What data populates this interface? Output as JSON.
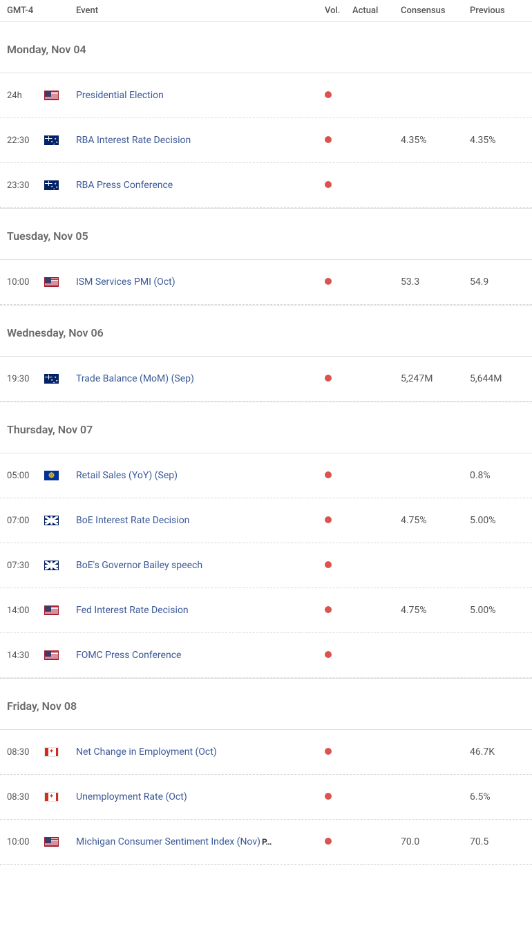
{
  "colors": {
    "vol_dot": "#d9534f",
    "event_link": "#3b5998",
    "text": "#555555",
    "day_header": "#6a6a6a",
    "border": "#e0e0e0",
    "dashed_border": "#d8d8d8"
  },
  "header": {
    "time": "GMT-4",
    "event": "Event",
    "vol": "Vol.",
    "actual": "Actual",
    "consensus": "Consensus",
    "previous": "Previous"
  },
  "days": [
    {
      "label": "Monday, Nov 04",
      "events": [
        {
          "time": "24h",
          "country": "us",
          "name": "Presidential Election",
          "vol": "high",
          "actual": "",
          "consensus": "",
          "previous": ""
        },
        {
          "time": "22:30",
          "country": "au",
          "name": "RBA Interest Rate Decision",
          "vol": "high",
          "actual": "",
          "consensus": "4.35%",
          "previous": "4.35%"
        },
        {
          "time": "23:30",
          "country": "au",
          "name": "RBA Press Conference",
          "vol": "high",
          "actual": "",
          "consensus": "",
          "previous": ""
        }
      ]
    },
    {
      "label": "Tuesday, Nov 05",
      "events": [
        {
          "time": "10:00",
          "country": "us",
          "name": "ISM Services PMI (Oct)",
          "vol": "high",
          "actual": "",
          "consensus": "53.3",
          "previous": "54.9"
        }
      ]
    },
    {
      "label": "Wednesday, Nov 06",
      "events": [
        {
          "time": "19:30",
          "country": "au",
          "name": "Trade Balance (MoM) (Sep)",
          "vol": "high",
          "actual": "",
          "consensus": "5,247M",
          "previous": "5,644M"
        }
      ]
    },
    {
      "label": "Thursday, Nov 07",
      "events": [
        {
          "time": "05:00",
          "country": "eu",
          "name": "Retail Sales (YoY) (Sep)",
          "vol": "high",
          "actual": "",
          "consensus": "",
          "previous": "0.8%"
        },
        {
          "time": "07:00",
          "country": "uk",
          "name": "BoE Interest Rate Decision",
          "vol": "high",
          "actual": "",
          "consensus": "4.75%",
          "previous": "5.00%"
        },
        {
          "time": "07:30",
          "country": "uk",
          "name": "BoE's Governor Bailey speech",
          "vol": "high",
          "actual": "",
          "consensus": "",
          "previous": ""
        },
        {
          "time": "14:00",
          "country": "us",
          "name": "Fed Interest Rate Decision",
          "vol": "high",
          "actual": "",
          "consensus": "4.75%",
          "previous": "5.00%"
        },
        {
          "time": "14:30",
          "country": "us",
          "name": "FOMC Press Conference",
          "vol": "high",
          "actual": "",
          "consensus": "",
          "previous": ""
        }
      ]
    },
    {
      "label": "Friday, Nov 08",
      "events": [
        {
          "time": "08:30",
          "country": "ca",
          "name": "Net Change in Employment (Oct)",
          "vol": "high",
          "actual": "",
          "consensus": "",
          "previous": "46.7K"
        },
        {
          "time": "08:30",
          "country": "ca",
          "name": "Unemployment Rate (Oct)",
          "vol": "high",
          "actual": "",
          "consensus": "",
          "previous": "6.5%"
        },
        {
          "time": "10:00",
          "country": "us",
          "name": "Michigan Consumer Sentiment Index (Nov)",
          "suffix": "P…",
          "vol": "high",
          "actual": "",
          "consensus": "70.0",
          "previous": "70.5"
        }
      ]
    }
  ]
}
